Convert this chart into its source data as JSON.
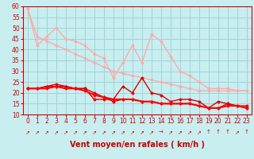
{
  "bg_color": "#c8eef0",
  "grid_color": "#a0d4d8",
  "xlabel": "Vent moyen/en rafales ( km/h )",
  "xlim": [
    -0.5,
    23.5
  ],
  "ylim": [
    10,
    60
  ],
  "yticks": [
    10,
    15,
    20,
    25,
    30,
    35,
    40,
    45,
    50,
    55,
    60
  ],
  "xticks": [
    0,
    1,
    2,
    3,
    4,
    5,
    6,
    7,
    8,
    9,
    10,
    11,
    12,
    13,
    14,
    15,
    16,
    17,
    18,
    19,
    20,
    21,
    22,
    23
  ],
  "series": [
    {
      "x": [
        0,
        1,
        2,
        3,
        4,
        5,
        6,
        7,
        8,
        9,
        10,
        11,
        12,
        13,
        14,
        15,
        16,
        17,
        18,
        19,
        20,
        21,
        22,
        23
      ],
      "y": [
        59,
        42,
        46,
        50,
        45,
        44,
        42,
        38,
        36,
        27,
        34,
        42,
        34,
        47,
        44,
        37,
        30,
        28,
        25,
        22,
        22,
        22,
        21,
        21
      ],
      "color": "#ffaaaa",
      "lw": 1.0,
      "marker": "D",
      "ms": 1.5
    },
    {
      "x": [
        0,
        1,
        2,
        3,
        4,
        5,
        6,
        7,
        8,
        9,
        10,
        11,
        12,
        13,
        14,
        15,
        16,
        17,
        18,
        19,
        20,
        21,
        22,
        23
      ],
      "y": [
        59,
        46,
        44,
        42,
        40,
        38,
        36,
        34,
        32,
        30,
        29,
        28,
        27,
        26,
        25,
        24,
        23,
        22,
        21,
        21,
        21,
        21,
        21,
        21
      ],
      "color": "#ffaaaa",
      "lw": 1.0,
      "marker": "D",
      "ms": 1.5
    },
    {
      "x": [
        0,
        1,
        2,
        3,
        4,
        5,
        6,
        7,
        8,
        9,
        10,
        11,
        12,
        13,
        14,
        15,
        16,
        17,
        18,
        19,
        20,
        21,
        22,
        23
      ],
      "y": [
        22,
        22,
        23,
        24,
        23,
        22,
        22,
        17,
        17,
        17,
        23,
        20,
        27,
        20,
        19,
        16,
        17,
        17,
        16,
        13,
        16,
        15,
        14,
        14
      ],
      "color": "#dd0000",
      "lw": 1.0,
      "marker": "D",
      "ms": 1.5
    },
    {
      "x": [
        0,
        1,
        2,
        3,
        4,
        5,
        6,
        7,
        8,
        9,
        10,
        11,
        12,
        13,
        14,
        15,
        16,
        17,
        18,
        19,
        20,
        21,
        22,
        23
      ],
      "y": [
        22,
        22,
        23,
        23,
        23,
        22,
        22,
        20,
        18,
        16,
        17,
        17,
        16,
        16,
        15,
        15,
        15,
        15,
        14,
        13,
        13,
        15,
        14,
        13
      ],
      "color": "#dd0000",
      "lw": 1.0,
      "marker": "D",
      "ms": 1.5
    },
    {
      "x": [
        0,
        1,
        2,
        3,
        4,
        5,
        6,
        7,
        8,
        9,
        10,
        11,
        12,
        13,
        14,
        15,
        16,
        17,
        18,
        19,
        20,
        21,
        22,
        23
      ],
      "y": [
        22,
        22,
        22,
        23,
        22,
        22,
        21,
        19,
        18,
        17,
        17,
        17,
        16,
        16,
        15,
        15,
        15,
        15,
        14,
        13,
        13,
        14,
        14,
        13
      ],
      "color": "#ff0000",
      "lw": 1.5,
      "marker": "D",
      "ms": 1.5
    }
  ],
  "arrow_chars": [
    "↗",
    "↗",
    "↗",
    "↗",
    "↗",
    "↗",
    "↗",
    "↗",
    "↗",
    "↗",
    "↗",
    "↗",
    "↗",
    "↗",
    "→",
    "↗",
    "↗",
    "↗",
    "↗",
    "↑",
    "↑",
    "↑",
    "↗",
    "↑"
  ],
  "tick_fontsize": 5.5,
  "axis_label_fontsize": 7
}
